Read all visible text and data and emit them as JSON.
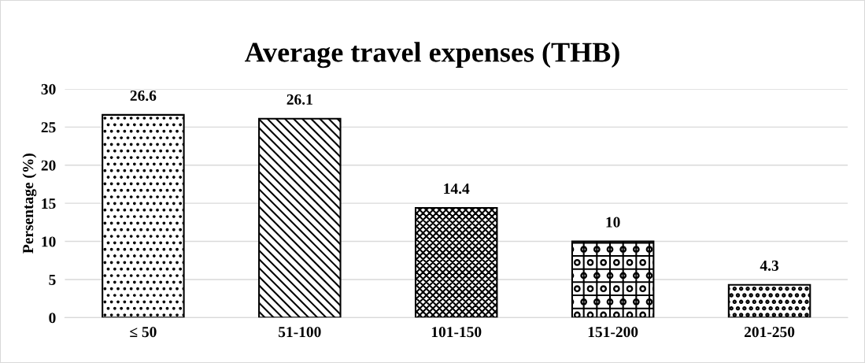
{
  "chart_data": {
    "type": "bar",
    "title": "Average travel expenses (THB)",
    "ylabel": "Persentage (%)",
    "categories": [
      "≤ 50",
      "51-100",
      "101-150",
      "151-200",
      "201-250"
    ],
    "values": [
      26.6,
      26.1,
      14.4,
      10,
      4.3
    ],
    "color": "#000000",
    "ylim": [
      0,
      30
    ],
    "yticks": [
      0,
      5,
      10,
      15,
      20,
      25,
      30
    ],
    "grid": "y",
    "data_labels": true
  }
}
